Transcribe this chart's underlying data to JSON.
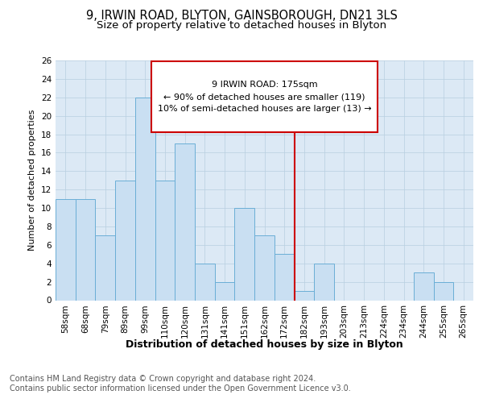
{
  "title": "9, IRWIN ROAD, BLYTON, GAINSBOROUGH, DN21 3LS",
  "subtitle": "Size of property relative to detached houses in Blyton",
  "xlabel": "Distribution of detached houses by size in Blyton",
  "ylabel": "Number of detached properties",
  "categories": [
    "58sqm",
    "68sqm",
    "79sqm",
    "89sqm",
    "99sqm",
    "110sqm",
    "120sqm",
    "131sqm",
    "141sqm",
    "151sqm",
    "162sqm",
    "172sqm",
    "182sqm",
    "193sqm",
    "203sqm",
    "213sqm",
    "224sqm",
    "234sqm",
    "244sqm",
    "255sqm",
    "265sqm"
  ],
  "values": [
    11,
    11,
    7,
    13,
    22,
    13,
    17,
    4,
    2,
    10,
    7,
    5,
    1,
    4,
    0,
    0,
    0,
    0,
    3,
    2,
    0
  ],
  "bar_color": "#c9dff2",
  "bar_edge_color": "#6aaed6",
  "vline_color": "#cc0000",
  "annotation_text": "9 IRWIN ROAD: 175sqm\n← 90% of detached houses are smaller (119)\n10% of semi-detached houses are larger (13) →",
  "annotation_box_color": "#cc0000",
  "ylim": [
    0,
    26
  ],
  "yticks": [
    0,
    2,
    4,
    6,
    8,
    10,
    12,
    14,
    16,
    18,
    20,
    22,
    24,
    26
  ],
  "grid_color": "#b8cfe0",
  "background_color": "#dce9f5",
  "footnote": "Contains HM Land Registry data © Crown copyright and database right 2024.\nContains public sector information licensed under the Open Government Licence v3.0.",
  "title_fontsize": 10.5,
  "subtitle_fontsize": 9.5,
  "xlabel_fontsize": 9,
  "ylabel_fontsize": 8,
  "tick_fontsize": 7.5,
  "annotation_fontsize": 8,
  "footnote_fontsize": 7
}
